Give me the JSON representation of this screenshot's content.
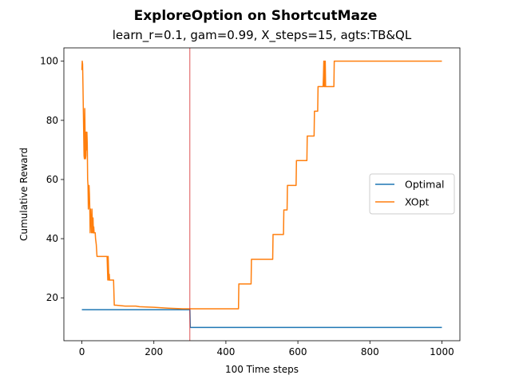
{
  "chart_data": {
    "type": "line",
    "title": "ExploreOption on ShortcutMaze",
    "subtitle": "learn_r=0.1, gam=0.99, X_steps=15, agts:TB&QL",
    "xlabel": "100 Time steps",
    "ylabel": "Cumulative Reward",
    "xlim": [
      -50,
      1050
    ],
    "ylim": [
      5.5,
      104.5
    ],
    "xticks": [
      0,
      200,
      400,
      600,
      800,
      1000
    ],
    "yticks": [
      20,
      40,
      60,
      80,
      100
    ],
    "grid": false,
    "legend_position": "center-right",
    "vline": {
      "x": 300,
      "color": "#d62728"
    },
    "series": [
      {
        "name": "Optimal",
        "color": "#1f77b4",
        "x": [
          0,
          299,
          300,
          301,
          1000
        ],
        "y": [
          16,
          16,
          16,
          10,
          10
        ]
      },
      {
        "name": "XOpt",
        "color": "#ff7f0e",
        "x": [
          0,
          1,
          2,
          3,
          4,
          5,
          6,
          7,
          8,
          9,
          10,
          11,
          12,
          13,
          14,
          15,
          16,
          17,
          18,
          19,
          20,
          21,
          22,
          23,
          24,
          25,
          26,
          27,
          28,
          29,
          30,
          31,
          32,
          33,
          34,
          35,
          36,
          37,
          38,
          40,
          42,
          45,
          60,
          70,
          72,
          73,
          74,
          75,
          76,
          77,
          78,
          80,
          82,
          85,
          88,
          90,
          92,
          95,
          120,
          150,
          160,
          200,
          240,
          280,
          300,
          435,
          436,
          470,
          471,
          530,
          531,
          560,
          561,
          570,
          571,
          595,
          596,
          625,
          626,
          645,
          646,
          655,
          656,
          670,
          671,
          672,
          673,
          674,
          675,
          676,
          677,
          678,
          680,
          681,
          700,
          701,
          1000
        ],
        "y": [
          97,
          100,
          99,
          92,
          84,
          76,
          68,
          67,
          84,
          75,
          67,
          68,
          76,
          70,
          76,
          72,
          60,
          58,
          50,
          56,
          58,
          55,
          50,
          42,
          50,
          45,
          48,
          42,
          50,
          46,
          42,
          47,
          42,
          44,
          42,
          42,
          42,
          42,
          40,
          38,
          34,
          34,
          34,
          34,
          26,
          34,
          30,
          26,
          28,
          26,
          26,
          26,
          26,
          26,
          26,
          17.5,
          17.5,
          17.5,
          17.2,
          17.2,
          17,
          16.8,
          16.5,
          16.3,
          16.3,
          16.3,
          24.7,
          24.7,
          33,
          33,
          41.4,
          41.4,
          49.7,
          49.7,
          58,
          58,
          66.4,
          66.4,
          74.7,
          74.7,
          83.1,
          83.1,
          91.4,
          91.4,
          95,
          100,
          91.4,
          100,
          91.4,
          100,
          91.4,
          91.4,
          91.4,
          91.4,
          91.4,
          100,
          100
        ]
      }
    ]
  }
}
